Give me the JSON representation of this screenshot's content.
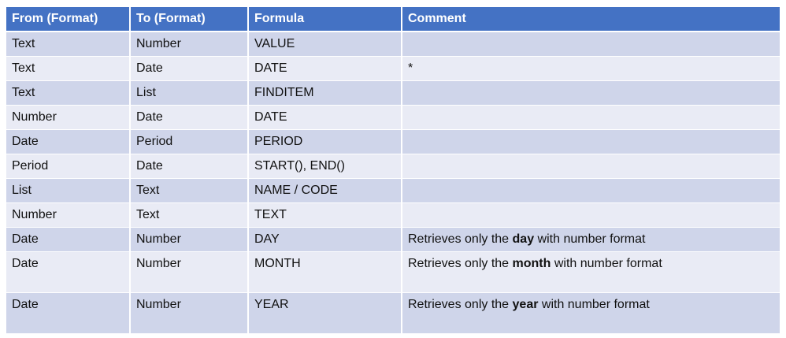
{
  "colors": {
    "header": "#4472C4",
    "row_odd": "#CFD5EA",
    "row_even": "#E9EBF5"
  },
  "headers": [
    "From (Format)",
    "To (Format)",
    "Formula",
    "Comment"
  ],
  "rows": [
    {
      "from": "Text",
      "to": "Number",
      "formula": "VALUE",
      "comment": {
        "pre": "",
        "bold": "",
        "post": ""
      }
    },
    {
      "from": "Text",
      "to": "Date",
      "formula": "DATE",
      "comment": {
        "pre": "*",
        "bold": "",
        "post": ""
      }
    },
    {
      "from": "Text",
      "to": "List",
      "formula": "FINDITEM",
      "comment": {
        "pre": "",
        "bold": "",
        "post": ""
      }
    },
    {
      "from": "Number",
      "to": "Date",
      "formula": "DATE",
      "comment": {
        "pre": "",
        "bold": "",
        "post": ""
      }
    },
    {
      "from": "Date",
      "to": "Period",
      "formula": "PERIOD",
      "comment": {
        "pre": "",
        "bold": "",
        "post": ""
      }
    },
    {
      "from": "Period",
      "to": "Date",
      "formula": "START(), END()",
      "comment": {
        "pre": "",
        "bold": "",
        "post": ""
      }
    },
    {
      "from": "List",
      "to": "Text",
      "formula": "NAME / CODE",
      "comment": {
        "pre": "",
        "bold": "",
        "post": ""
      }
    },
    {
      "from": "Number",
      "to": "Text",
      "formula": "TEXT",
      "comment": {
        "pre": "",
        "bold": "",
        "post": ""
      }
    },
    {
      "from": "Date",
      "to": "Number",
      "formula": "DAY",
      "comment": {
        "pre": "Retrieves only the ",
        "bold": "day",
        "post": " with number format"
      }
    },
    {
      "from": "Date",
      "to": "Number",
      "formula": "MONTH",
      "comment": {
        "pre": "Retrieves only the ",
        "bold": "month",
        "post": " with number format"
      }
    },
    {
      "from": "Date",
      "to": "Number",
      "formula": "YEAR",
      "comment": {
        "pre": "Retrieves only the ",
        "bold": "year",
        "post": " with number format"
      }
    }
  ]
}
